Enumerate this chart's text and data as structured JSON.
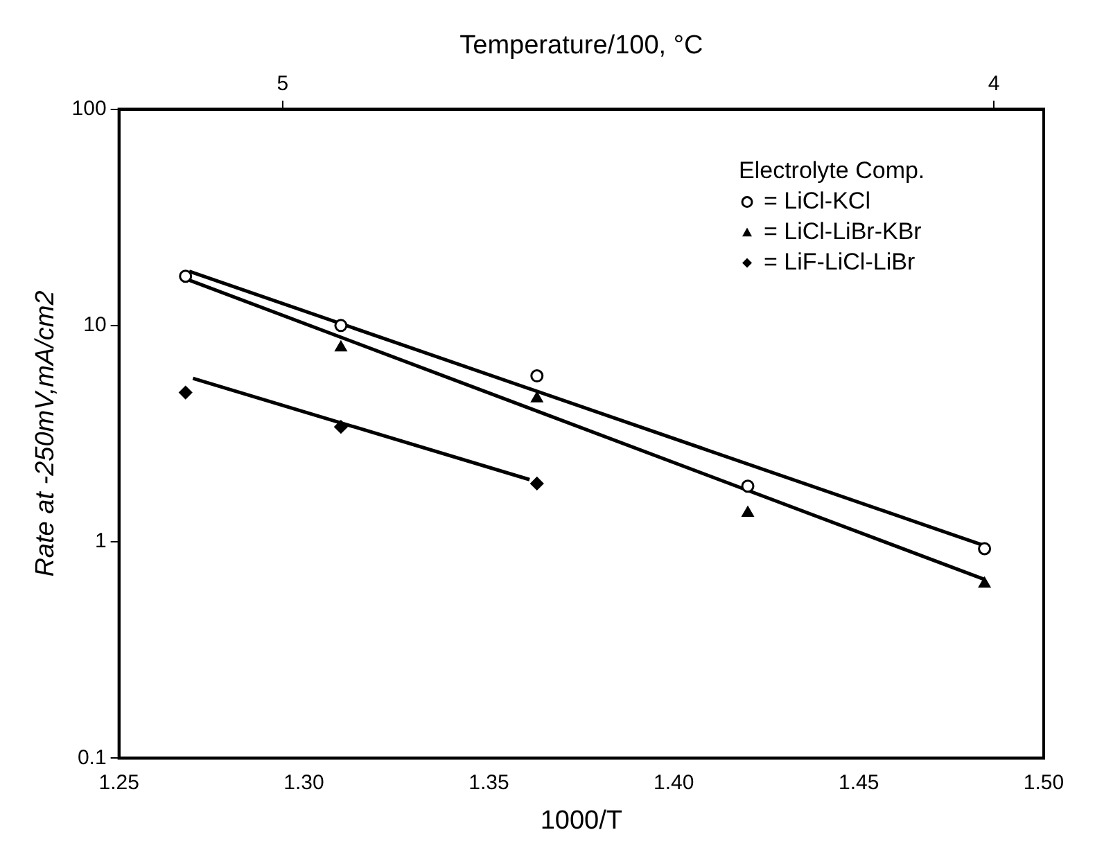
{
  "chart_data": {
    "type": "scatter",
    "xlabel": "1000/T",
    "ylabel": "Rate at -250mV,mA/cm2",
    "x2label": "Temperature/100, °C",
    "legend_title": "Electrolyte Comp.",
    "xlim": [
      1.25,
      1.5
    ],
    "xticks": [
      {
        "value": 1.25,
        "label": "1.25"
      },
      {
        "value": 1.3,
        "label": "1.30"
      },
      {
        "value": 1.35,
        "label": "1.35"
      },
      {
        "value": 1.4,
        "label": "1.40"
      },
      {
        "value": 1.45,
        "label": "1.45"
      },
      {
        "value": 1.5,
        "label": "1.50"
      }
    ],
    "x2lim": [
      5.23,
      3.93
    ],
    "x2ticks": [
      5,
      4
    ],
    "ylim": [
      0.1,
      100
    ],
    "yticks": [
      0.1,
      1,
      10,
      100
    ],
    "log": "y",
    "grid": false,
    "legend": "top right",
    "series": [
      {
        "name": "= LiCl-KCl",
        "color": "#000000",
        "marker": "circle",
        "x": [
          1.268,
          1.31,
          1.363,
          1.42,
          1.484
        ],
        "values": [
          16.9,
          10,
          5.85,
          1.81,
          0.93
        ]
      },
      {
        "name": "= LiCl-LiBr-KBr",
        "color": "#000000",
        "marker": "triangle",
        "x": [
          1.31,
          1.363,
          1.42,
          1.484
        ],
        "values": [
          7.9,
          4.6,
          1.36,
          0.64
        ]
      },
      {
        "name": "= LiF-LiCl-LiBr",
        "color": "#000000",
        "marker": "diamond",
        "x": [
          1.268,
          1.31,
          1.363
        ],
        "values": [
          4.9,
          3.4,
          1.86
        ]
      },
      {
        "type": "line",
        "color": "#000000",
        "marker": "none",
        "line_style": "solid",
        "x": [
          1.269,
          1.484
        ],
        "values": [
          17.8,
          0.96
        ]
      },
      {
        "type": "line",
        "color": "#000000",
        "marker": "none",
        "line_style": "solid",
        "x": [
          1.269,
          1.484
        ],
        "values": [
          16.2,
          0.67
        ]
      },
      {
        "type": "line",
        "color": "#000000",
        "marker": "none",
        "line_style": "solid",
        "x": [
          1.27,
          1.361
        ],
        "values": [
          5.7,
          1.94
        ]
      }
    ]
  }
}
